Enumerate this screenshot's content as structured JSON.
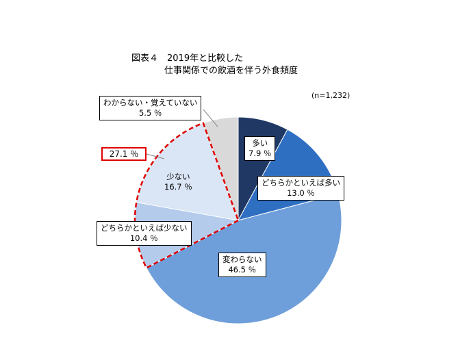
{
  "title": {
    "line1": "図表４　2019年と比較した",
    "line2": "仕事関係での飲酒を伴う外食頻度"
  },
  "sample_size": "(n=1,232)",
  "colors": {
    "多い": "#1f3864",
    "どちらかといえば多い": "#2e6fc2",
    "変わらない": "#6f9fda",
    "どちらかといえば少ない": "#b4cbec",
    "少ない": "#dae5f5",
    "わからない・覚えていない": "#d9d9d9",
    "highlight": "#e00000"
  },
  "highlight": {
    "label": "27.1 ％",
    "value": 27.1,
    "categories": [
      "どちらかといえば少ない",
      "少ない"
    ]
  },
  "chart_data": {
    "type": "pie",
    "title": "図表４　2019年と比較した 仕事関係での飲酒を伴う外食頻度",
    "start": "12 o'clock",
    "direction": "clockwise",
    "legend": "none",
    "slices": [
      {
        "name": "多い",
        "value": 7.9,
        "value_label": "7.9 ％"
      },
      {
        "name": "どちらかといえば多い",
        "value": 13.0,
        "value_label": "13.0 ％"
      },
      {
        "name": "変わらない",
        "value": 46.5,
        "value_label": "46.5 ％"
      },
      {
        "name": "どちらかといえば少ない",
        "value": 10.4,
        "value_label": "10.4 ％"
      },
      {
        "name": "少ない",
        "value": 16.7,
        "value_label": "16.7 ％"
      },
      {
        "name": "わからない・覚えていない",
        "value": 5.5,
        "value_label": "5.5 ％"
      }
    ]
  }
}
